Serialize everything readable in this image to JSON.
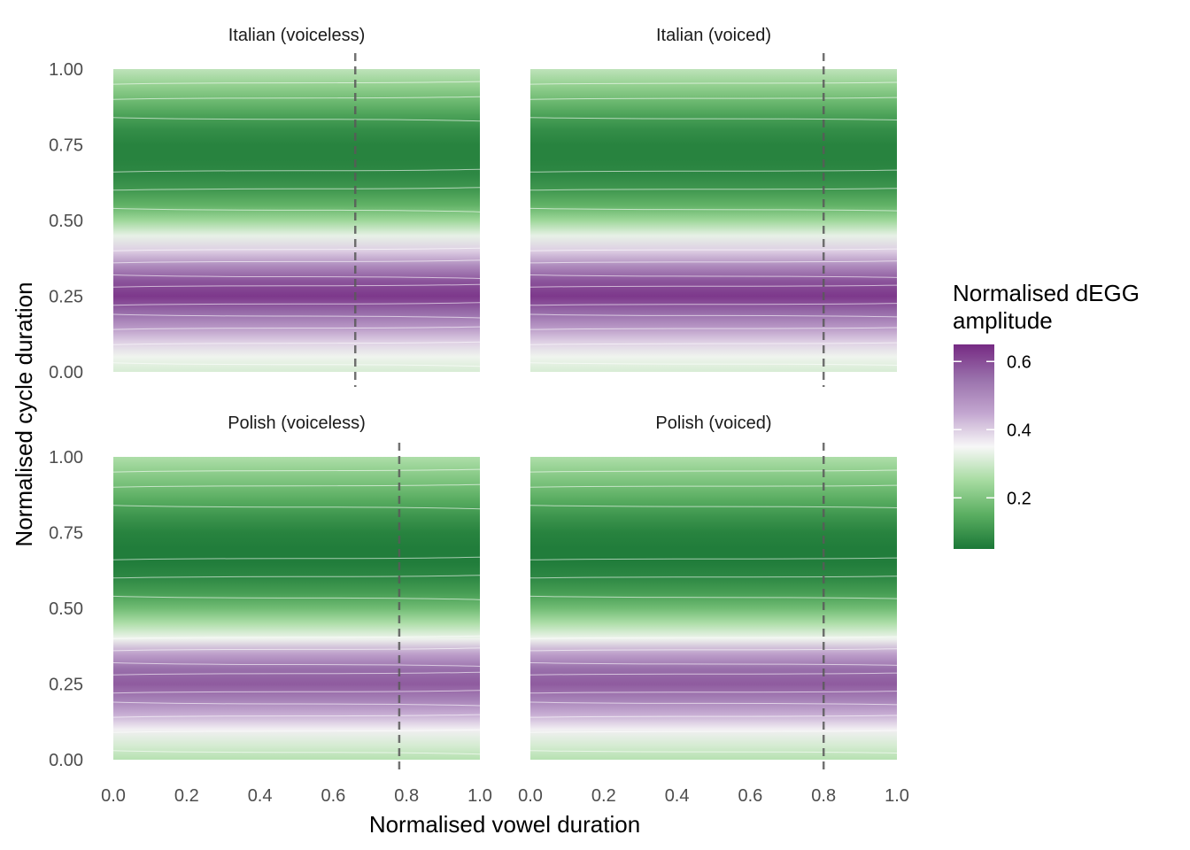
{
  "chart_data": {
    "type": "heatmap",
    "xlabel": "Normalised vowel duration",
    "ylabel": "Normalised cycle duration",
    "x_ticks": [
      "0.0",
      "0.2",
      "0.4",
      "0.6",
      "0.8",
      "1.0"
    ],
    "y_ticks": [
      "0.00",
      "0.25",
      "0.50",
      "0.75",
      "1.00"
    ],
    "xlim": [
      0,
      1
    ],
    "ylim": [
      0,
      1
    ],
    "legend": {
      "title_line1": "Normalised dEGG",
      "title_line2": "amplitude",
      "ticks": [
        "0.2",
        "0.4",
        "0.6"
      ],
      "range": [
        0.05,
        0.65
      ],
      "colors": [
        "#1b7837",
        "#5aae61",
        "#a6dba0",
        "#f7f7f7",
        "#c2a5cf",
        "#9970ab",
        "#762a83"
      ],
      "placement": "right"
    },
    "panels": [
      {
        "title": "Italian (voiceless)",
        "vline": 0.66,
        "profile": [
          {
            "y": 0.0,
            "v": 0.31
          },
          {
            "y": 0.05,
            "v": 0.34
          },
          {
            "y": 0.1,
            "v": 0.4
          },
          {
            "y": 0.15,
            "v": 0.48
          },
          {
            "y": 0.2,
            "v": 0.56
          },
          {
            "y": 0.25,
            "v": 0.63
          },
          {
            "y": 0.3,
            "v": 0.59
          },
          {
            "y": 0.35,
            "v": 0.5
          },
          {
            "y": 0.4,
            "v": 0.4
          },
          {
            "y": 0.45,
            "v": 0.33
          },
          {
            "y": 0.5,
            "v": 0.24
          },
          {
            "y": 0.55,
            "v": 0.16
          },
          {
            "y": 0.6,
            "v": 0.11
          },
          {
            "y": 0.65,
            "v": 0.08
          },
          {
            "y": 0.7,
            "v": 0.07
          },
          {
            "y": 0.75,
            "v": 0.07
          },
          {
            "y": 0.8,
            "v": 0.09
          },
          {
            "y": 0.85,
            "v": 0.13
          },
          {
            "y": 0.9,
            "v": 0.18
          },
          {
            "y": 0.95,
            "v": 0.23
          },
          {
            "y": 1.0,
            "v": 0.28
          }
        ]
      },
      {
        "title": "Italian (voiced)",
        "vline": 0.8,
        "profile": [
          {
            "y": 0.0,
            "v": 0.31
          },
          {
            "y": 0.05,
            "v": 0.34
          },
          {
            "y": 0.1,
            "v": 0.4
          },
          {
            "y": 0.15,
            "v": 0.48
          },
          {
            "y": 0.2,
            "v": 0.56
          },
          {
            "y": 0.25,
            "v": 0.63
          },
          {
            "y": 0.3,
            "v": 0.59
          },
          {
            "y": 0.35,
            "v": 0.5
          },
          {
            "y": 0.4,
            "v": 0.4
          },
          {
            "y": 0.45,
            "v": 0.33
          },
          {
            "y": 0.5,
            "v": 0.24
          },
          {
            "y": 0.55,
            "v": 0.16
          },
          {
            "y": 0.6,
            "v": 0.11
          },
          {
            "y": 0.65,
            "v": 0.08
          },
          {
            "y": 0.7,
            "v": 0.07
          },
          {
            "y": 0.75,
            "v": 0.07
          },
          {
            "y": 0.8,
            "v": 0.09
          },
          {
            "y": 0.85,
            "v": 0.13
          },
          {
            "y": 0.9,
            "v": 0.18
          },
          {
            "y": 0.95,
            "v": 0.23
          },
          {
            "y": 1.0,
            "v": 0.28
          }
        ]
      },
      {
        "title": "Polish (voiceless)",
        "vline": 0.78,
        "profile": [
          {
            "y": 0.0,
            "v": 0.27
          },
          {
            "y": 0.05,
            "v": 0.31
          },
          {
            "y": 0.1,
            "v": 0.36
          },
          {
            "y": 0.15,
            "v": 0.44
          },
          {
            "y": 0.2,
            "v": 0.52
          },
          {
            "y": 0.25,
            "v": 0.58
          },
          {
            "y": 0.3,
            "v": 0.55
          },
          {
            "y": 0.35,
            "v": 0.46
          },
          {
            "y": 0.4,
            "v": 0.34
          },
          {
            "y": 0.45,
            "v": 0.26
          },
          {
            "y": 0.5,
            "v": 0.18
          },
          {
            "y": 0.55,
            "v": 0.12
          },
          {
            "y": 0.6,
            "v": 0.08
          },
          {
            "y": 0.65,
            "v": 0.06
          },
          {
            "y": 0.7,
            "v": 0.06
          },
          {
            "y": 0.75,
            "v": 0.07
          },
          {
            "y": 0.8,
            "v": 0.1
          },
          {
            "y": 0.85,
            "v": 0.14
          },
          {
            "y": 0.9,
            "v": 0.18
          },
          {
            "y": 0.95,
            "v": 0.22
          },
          {
            "y": 1.0,
            "v": 0.26
          }
        ]
      },
      {
        "title": "Polish (voiced)",
        "vline": 0.8,
        "profile": [
          {
            "y": 0.0,
            "v": 0.27
          },
          {
            "y": 0.05,
            "v": 0.31
          },
          {
            "y": 0.1,
            "v": 0.36
          },
          {
            "y": 0.15,
            "v": 0.44
          },
          {
            "y": 0.2,
            "v": 0.52
          },
          {
            "y": 0.25,
            "v": 0.58
          },
          {
            "y": 0.3,
            "v": 0.55
          },
          {
            "y": 0.35,
            "v": 0.46
          },
          {
            "y": 0.4,
            "v": 0.34
          },
          {
            "y": 0.45,
            "v": 0.26
          },
          {
            "y": 0.5,
            "v": 0.18
          },
          {
            "y": 0.55,
            "v": 0.12
          },
          {
            "y": 0.6,
            "v": 0.08
          },
          {
            "y": 0.65,
            "v": 0.06
          },
          {
            "y": 0.7,
            "v": 0.06
          },
          {
            "y": 0.75,
            "v": 0.07
          },
          {
            "y": 0.8,
            "v": 0.1
          },
          {
            "y": 0.85,
            "v": 0.14
          },
          {
            "y": 0.9,
            "v": 0.18
          },
          {
            "y": 0.95,
            "v": 0.22
          },
          {
            "y": 1.0,
            "v": 0.26
          }
        ]
      }
    ]
  }
}
